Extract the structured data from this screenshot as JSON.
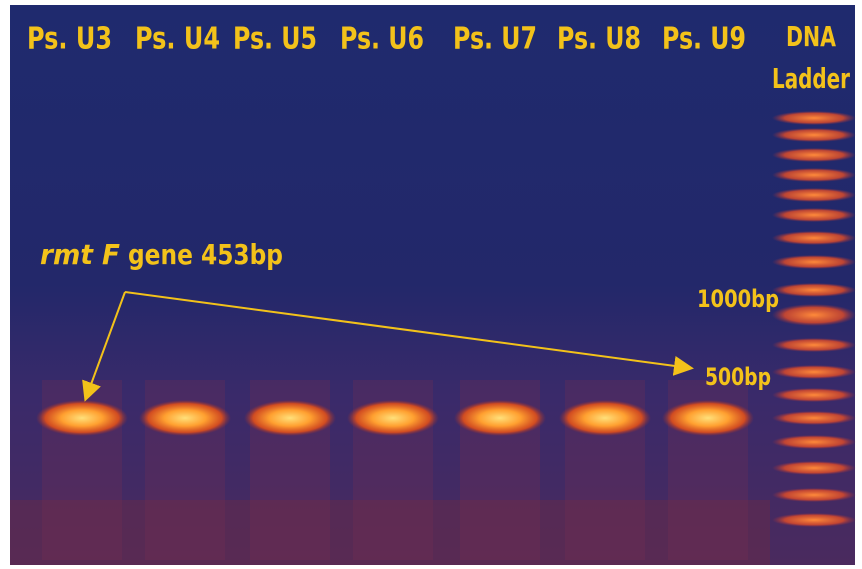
{
  "lanes": [
    "Ps. U3",
    "Ps. U4",
    "Ps. U5",
    "Ps. U6",
    "Ps. U7",
    "Ps. U8",
    "Ps. U9"
  ],
  "ladder_label": [
    "DNA",
    "Ladder"
  ],
  "annotation": {
    "gene_name": "rmt F",
    "gene_size": "gene 453bp"
  },
  "markers": [
    "1000bp",
    "500bp"
  ]
}
